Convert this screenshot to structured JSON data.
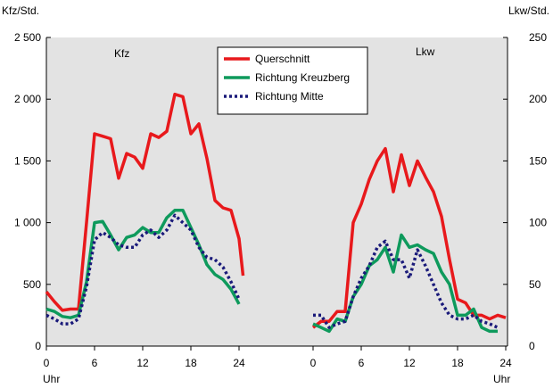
{
  "chart_data": {
    "type": "line",
    "panels": [
      "Kfz",
      "Lkw"
    ],
    "left_axis": {
      "label": "Kfz/Std.",
      "ylim": [
        0,
        2500
      ],
      "ticks": [
        0,
        500,
        1000,
        1500,
        2000,
        2500
      ],
      "tick_labels": [
        "0",
        "500",
        "1 000",
        "1 500",
        "2 000",
        "2 500"
      ]
    },
    "right_axis": {
      "label": "Lkw/Std.",
      "ylim": [
        0,
        250
      ],
      "ticks": [
        0,
        50,
        100,
        150,
        200,
        250
      ],
      "tick_labels": [
        "0",
        "50",
        "100",
        "150",
        "200",
        "250"
      ]
    },
    "x_axis": {
      "xlim": [
        0,
        24
      ],
      "ticks": [
        0,
        6,
        12,
        18,
        24
      ],
      "tick_labels": [
        "0",
        "6",
        "12",
        "18",
        "24"
      ],
      "unit_label": "Uhr"
    },
    "legend": {
      "placement": "top-center",
      "entries": [
        {
          "name": "Querschnitt",
          "color": "#e8191c",
          "style": "solid"
        },
        {
          "name": "Richtung Kreuzberg",
          "color": "#0e9a5c",
          "style": "solid"
        },
        {
          "name": "Richtung Mitte",
          "color": "#1a1a7a",
          "style": "dotted"
        }
      ]
    },
    "series": [
      {
        "panel": "Kfz",
        "name": "Querschnitt",
        "color": "#e8191c",
        "style": "solid",
        "x": [
          0,
          1,
          2,
          3,
          4,
          5,
          6,
          7,
          8,
          9,
          10,
          11,
          12,
          13,
          14,
          15,
          16,
          17,
          18,
          19,
          20,
          21,
          22,
          23,
          24,
          24.5
        ],
        "y": [
          440,
          360,
          290,
          300,
          300,
          1000,
          1720,
          1700,
          1680,
          1360,
          1560,
          1530,
          1440,
          1720,
          1690,
          1740,
          2040,
          2020,
          1720,
          1800,
          1520,
          1180,
          1120,
          1100,
          870,
          570
        ]
      },
      {
        "panel": "Kfz",
        "name": "Richtung Kreuzberg",
        "color": "#0e9a5c",
        "style": "solid",
        "x": [
          0,
          1,
          2,
          3,
          4,
          5,
          6,
          7,
          8,
          9,
          10,
          11,
          12,
          13,
          14,
          15,
          16,
          17,
          18,
          19,
          20,
          21,
          22,
          23,
          24
        ],
        "y": [
          300,
          280,
          240,
          230,
          250,
          520,
          1000,
          1010,
          900,
          780,
          880,
          900,
          960,
          920,
          920,
          1040,
          1100,
          1100,
          960,
          820,
          660,
          580,
          540,
          460,
          340
        ]
      },
      {
        "panel": "Kfz",
        "name": "Richtung Mitte",
        "color": "#1a1a7a",
        "style": "dotted",
        "x": [
          0,
          1,
          2,
          3,
          4,
          5,
          6,
          7,
          8,
          9,
          10,
          11,
          12,
          13,
          14,
          15,
          16,
          17,
          18,
          19,
          20,
          21,
          22,
          23,
          24
        ],
        "y": [
          250,
          220,
          180,
          180,
          220,
          480,
          860,
          920,
          880,
          820,
          800,
          800,
          900,
          940,
          880,
          940,
          1060,
          1000,
          940,
          800,
          720,
          700,
          640,
          520,
          380
        ]
      },
      {
        "panel": "Lkw",
        "name": "Querschnitt",
        "color": "#e8191c",
        "style": "solid",
        "x": [
          0,
          1,
          2,
          3,
          4,
          5,
          6,
          7,
          8,
          9,
          10,
          11,
          12,
          13,
          14,
          15,
          16,
          17,
          18,
          19,
          20,
          21,
          22,
          23,
          24
        ],
        "y": [
          15,
          20,
          20,
          28,
          28,
          100,
          115,
          135,
          150,
          160,
          125,
          155,
          130,
          150,
          137,
          125,
          105,
          70,
          38,
          35,
          25,
          25,
          22,
          25,
          23
        ]
      },
      {
        "panel": "Lkw",
        "name": "Richtung Kreuzberg",
        "color": "#0e9a5c",
        "style": "solid",
        "x": [
          0,
          1,
          2,
          3,
          4,
          5,
          6,
          7,
          8,
          9,
          10,
          11,
          12,
          13,
          14,
          15,
          16,
          17,
          18,
          19,
          20,
          21,
          22,
          23
        ],
        "y": [
          18,
          15,
          12,
          22,
          20,
          40,
          50,
          65,
          70,
          80,
          60,
          90,
          80,
          82,
          78,
          75,
          60,
          50,
          25,
          25,
          30,
          15,
          12,
          12
        ]
      },
      {
        "panel": "Lkw",
        "name": "Richtung Mitte",
        "color": "#1a1a7a",
        "style": "dotted",
        "x": [
          0,
          1,
          2,
          3,
          4,
          5,
          6,
          7,
          8,
          9,
          10,
          11,
          12,
          13,
          14,
          15,
          16,
          17,
          18,
          19,
          20,
          21,
          22,
          23
        ],
        "y": [
          25,
          25,
          15,
          18,
          20,
          40,
          55,
          65,
          80,
          85,
          70,
          70,
          55,
          78,
          65,
          50,
          35,
          25,
          22,
          22,
          25,
          20,
          18,
          15
        ]
      }
    ]
  }
}
